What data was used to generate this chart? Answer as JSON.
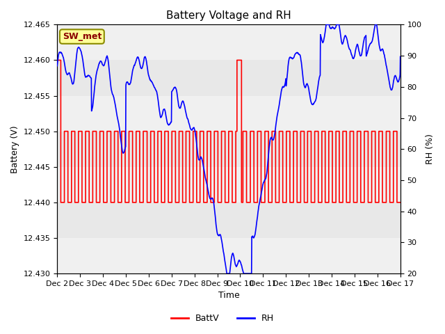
{
  "title": "Battery Voltage and RH",
  "xlabel": "Time",
  "ylabel_left": "Battery (V)",
  "ylabel_right": "RH (%)",
  "annotation": "SW_met",
  "ylim_left": [
    12.43,
    12.465
  ],
  "ylim_right": [
    20,
    100
  ],
  "yticks_left": [
    12.43,
    12.435,
    12.44,
    12.445,
    12.45,
    12.455,
    12.46,
    12.465
  ],
  "yticks_right": [
    20,
    30,
    40,
    50,
    60,
    70,
    80,
    90,
    100
  ],
  "xtick_labels": [
    "Dec 2",
    "Dec 3",
    "Dec 4",
    "Dec 5",
    "Dec 6",
    "Dec 7",
    "Dec 8",
    "Dec 9",
    "Dec 10",
    "Dec 11",
    "Dec 12",
    "Dec 13",
    "Dec 14",
    "Dec 15",
    "Dec 16",
    "Dec 17"
  ],
  "background_color": "#ffffff",
  "plot_bg_color": "#e8e8e8",
  "stripe_light": "#f0f0f0",
  "annotation_bg": "#ffff99",
  "annotation_border": "#8b8b00",
  "annotation_text_color": "#8b0000",
  "title_fontsize": 11,
  "axis_fontsize": 9,
  "tick_fontsize": 8,
  "battv_color": "red",
  "rh_color": "blue",
  "line_width": 1.2
}
